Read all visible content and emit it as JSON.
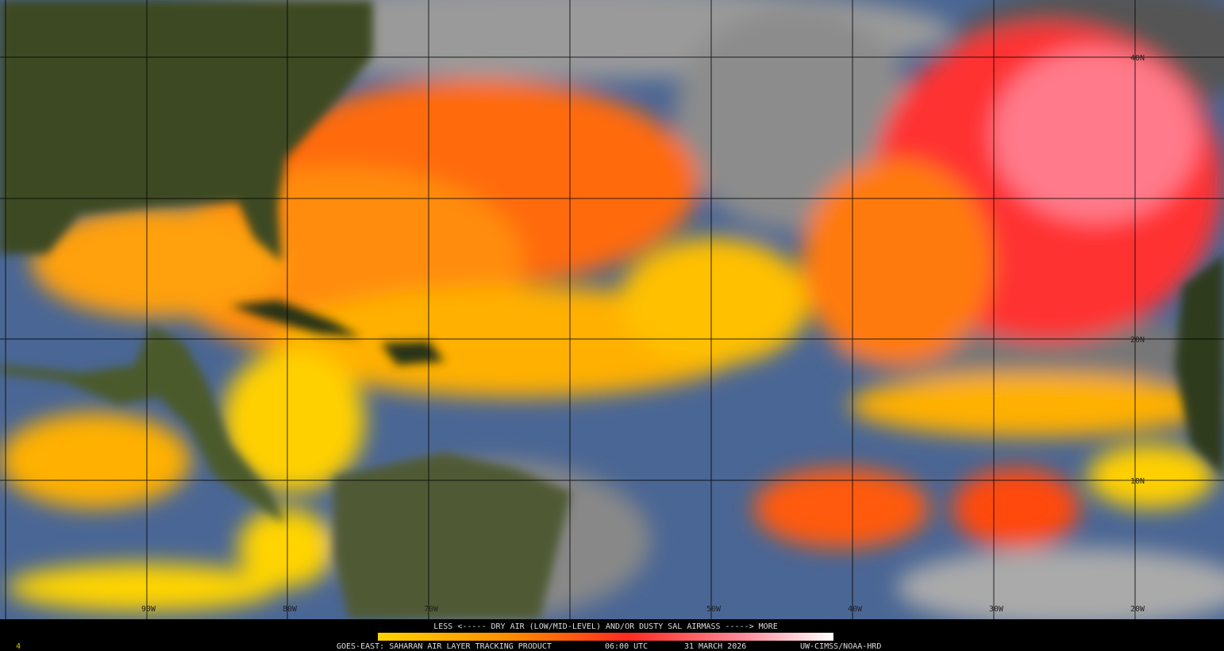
{
  "map": {
    "lat_labels": [
      "40N",
      "20N",
      "10N"
    ],
    "lon_labels": [
      "90W",
      "80W",
      "70W",
      "50W",
      "40W",
      "30W",
      "20W"
    ],
    "legend": "LESS <----- DRY AIR (LOW/MID-LEVEL) AND/OR DUSTY SAL AIRMASS -----> MORE",
    "footer": {
      "frame": "4",
      "product": "GOES-EAST: SAHARAN AIR LAYER TRACKING PRODUCT",
      "time": "06:00 UTC",
      "date": "31 MARCH 2026",
      "credit": "UW-CIMSS/NOAA-HRD"
    }
  }
}
